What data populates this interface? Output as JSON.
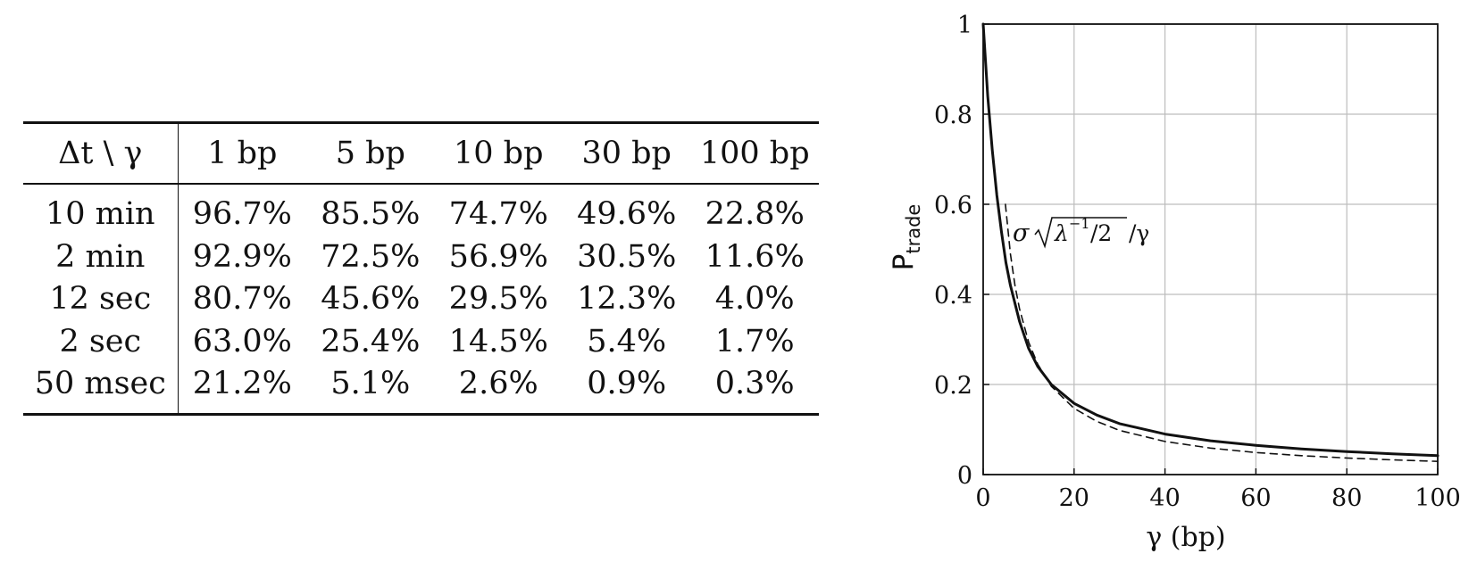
{
  "table": {
    "header_stub": "Δt \\ γ",
    "columns": [
      "1 bp",
      "5 bp",
      "10 bp",
      "30 bp",
      "100 bp"
    ],
    "rows": [
      {
        "label": "10 min",
        "values": [
          "96.7%",
          "85.5%",
          "74.7%",
          "49.6%",
          "22.8%"
        ]
      },
      {
        "label": "2 min",
        "values": [
          "92.9%",
          "72.5%",
          "56.9%",
          "30.5%",
          "11.6%"
        ]
      },
      {
        "label": "12 sec",
        "values": [
          "80.7%",
          "45.6%",
          "29.5%",
          "12.3%",
          "4.0%"
        ]
      },
      {
        "label": "2 sec",
        "values": [
          "63.0%",
          "25.4%",
          "14.5%",
          "5.4%",
          "1.7%"
        ]
      },
      {
        "label": "50 msec",
        "values": [
          "21.2%",
          "5.1%",
          "2.6%",
          "0.9%",
          "0.3%"
        ]
      }
    ]
  },
  "chart_data": {
    "type": "line",
    "xlabel": "γ (bp)",
    "ylabel": "P",
    "ylabel_subscript": "trade",
    "xlim": [
      0,
      100
    ],
    "ylim": [
      0,
      1
    ],
    "xticks": [
      0,
      20,
      40,
      60,
      80,
      100
    ],
    "yticks": [
      0,
      0.2,
      0.4,
      0.6,
      0.8,
      1
    ],
    "xtick_labels": [
      "0",
      "20",
      "40",
      "60",
      "80",
      "100"
    ],
    "ytick_labels": [
      "0",
      "0.2",
      "0.4",
      "0.6",
      "0.8",
      "1"
    ],
    "grid": true,
    "annotation": "σ√(λ⁻¹/2)/γ",
    "series": [
      {
        "style": "solid",
        "x": [
          0,
          1,
          2,
          3,
          4,
          5,
          6,
          8,
          10,
          12,
          15,
          20,
          25,
          30,
          40,
          50,
          60,
          70,
          80,
          90,
          100
        ],
        "y": [
          1.0,
          0.84,
          0.72,
          0.62,
          0.54,
          0.47,
          0.42,
          0.34,
          0.28,
          0.24,
          0.2,
          0.158,
          0.132,
          0.113,
          0.09,
          0.075,
          0.065,
          0.057,
          0.051,
          0.046,
          0.042
        ]
      },
      {
        "style": "dashed",
        "x": [
          4.9,
          5,
          6,
          7,
          8,
          10,
          12,
          15,
          20,
          25,
          30,
          40,
          50,
          60,
          70,
          80,
          90,
          100
        ],
        "y": [
          0.6,
          0.588,
          0.49,
          0.42,
          0.368,
          0.294,
          0.245,
          0.196,
          0.147,
          0.118,
          0.098,
          0.0735,
          0.0588,
          0.049,
          0.042,
          0.0368,
          0.0327,
          0.0294
        ]
      }
    ]
  }
}
